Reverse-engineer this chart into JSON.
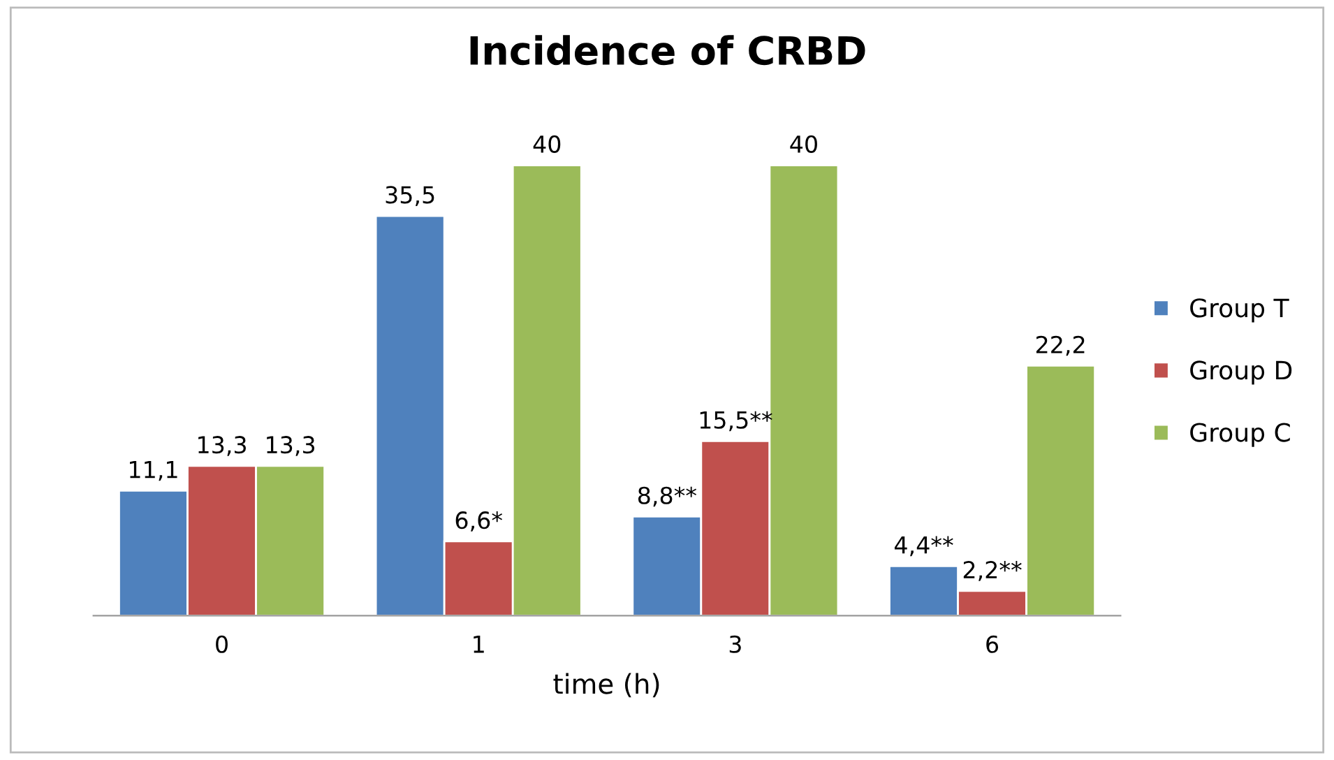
{
  "chart_data": {
    "type": "bar",
    "title": "Incidence of CRBD",
    "xlabel": "time (h)",
    "categories": [
      "0",
      "1",
      "3",
      "6"
    ],
    "series": [
      {
        "name": "Group T",
        "color": "#4f81bd",
        "values": [
          11.1,
          35.5,
          8.8,
          4.4
        ],
        "value_labels": [
          "11,1",
          "35,5",
          "8,8**",
          "4,4**"
        ]
      },
      {
        "name": "Group D",
        "color": "#c0504d",
        "values": [
          13.3,
          6.6,
          15.5,
          2.2
        ],
        "value_labels": [
          "13,3",
          "6,6*",
          "15,5**",
          "2,2**"
        ]
      },
      {
        "name": "Group C",
        "color": "#9bbb59",
        "values": [
          13.3,
          40,
          40,
          22.2
        ],
        "value_labels": [
          "13,3",
          "40",
          "40",
          "22,2"
        ]
      }
    ],
    "legend": "right",
    "grid": false
  }
}
